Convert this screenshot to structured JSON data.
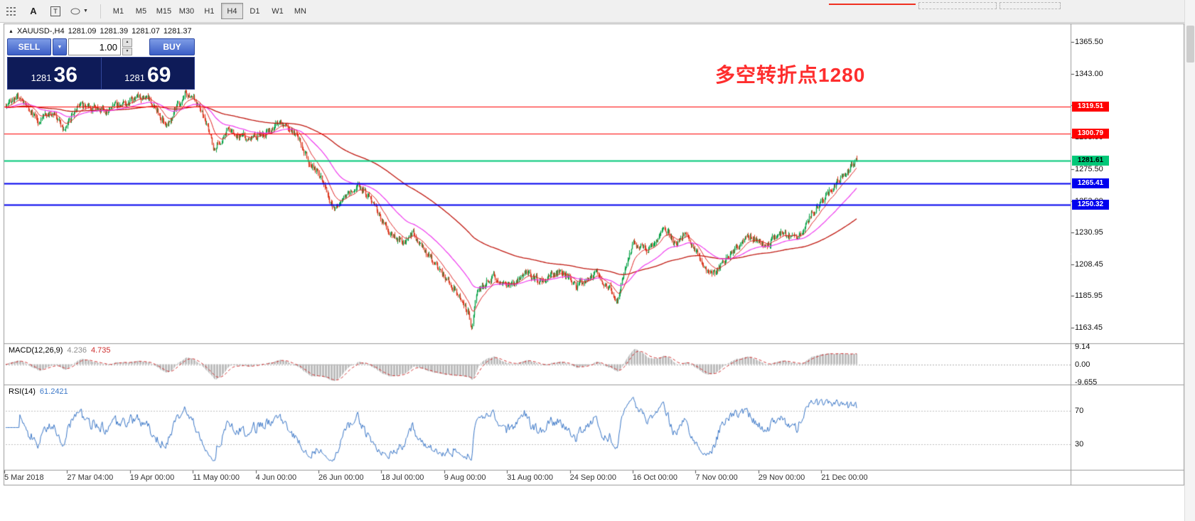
{
  "colors": {
    "up_candle": "#0ca34a",
    "down_candle": "#dd3b22",
    "macd_hist": "#bdbdbd",
    "macd_signal": "#d03030",
    "rsi_line": "#3c78c8",
    "annotation_red": "#fe2d2d",
    "panel_navy": "#0e1b58",
    "accent_blue": "#3b5ec6"
  },
  "icons": {
    "bar_marker": "▲",
    "caret_down": "▼",
    "spinner_up": "▲",
    "spinner_down": "▼",
    "text_tool": "A",
    "label_tool": "T"
  },
  "toolbar": {
    "timeframes": [
      {
        "label": "M1",
        "active": false
      },
      {
        "label": "M5",
        "active": false
      },
      {
        "label": "M15",
        "active": false
      },
      {
        "label": "M30",
        "active": false
      },
      {
        "label": "H1",
        "active": false
      },
      {
        "label": "H4",
        "active": true
      },
      {
        "label": "D1",
        "active": false
      },
      {
        "label": "W1",
        "active": false
      },
      {
        "label": "MN",
        "active": false
      }
    ]
  },
  "symbol_line": {
    "symbol": "XAUUSD-,H4",
    "open": "1281.09",
    "high": "1281.39",
    "low": "1281.07",
    "close": "1281.37"
  },
  "one_click": {
    "sell_label": "SELL",
    "buy_label": "BUY",
    "volume": "1.00",
    "sell_price_small": "1281",
    "sell_price_big": "36",
    "buy_price_small": "1281",
    "buy_price_big": "69"
  },
  "annotation": {
    "text": "多空转折点1280"
  },
  "indicators": {
    "macd": {
      "name": "MACD(12,26,9)",
      "value_main": "4.236",
      "value_signal": "4.735",
      "axis": [
        {
          "text": "9.14",
          "value": 9.14
        },
        {
          "text": "0.00",
          "value": 0
        },
        {
          "text": "-9.655",
          "value": -9.655
        }
      ]
    },
    "rsi": {
      "name": "RSI(14)",
      "value": "61.2421",
      "axis": [
        {
          "text": "70",
          "value": 70
        },
        {
          "text": "30",
          "value": 30
        }
      ]
    }
  },
  "chart_data": {
    "type": "candlestick",
    "symbol": "XAUUSD-",
    "timeframe": "H4",
    "title": "XAUUSD- H4 with MACD(12,26,9) and RSI(14)",
    "current_bar": {
      "open": 1281.09,
      "high": 1281.39,
      "low": 1281.07,
      "close": 1281.37
    },
    "y_axis_labels": [
      "1365.50",
      "1343.00",
      "1320.50",
      "1298.00",
      "1275.50",
      "1253.00",
      "1230.95",
      "1208.45",
      "1185.95",
      "1163.45"
    ],
    "y_axis_values": [
      1365.5,
      1343.0,
      1320.5,
      1298.0,
      1275.5,
      1253.0,
      1230.95,
      1208.45,
      1185.95,
      1163.45
    ],
    "x_labels": [
      "5 Mar 2018",
      "27 Mar 04:00",
      "19 Apr 00:00",
      "11 May 00:00",
      "4 Jun 00:00",
      "26 Jun 00:00",
      "18 Jul 00:00",
      "9 Aug 00:00",
      "31 Aug 00:00",
      "24 Sep 00:00",
      "16 Oct 00:00",
      "7 Nov 00:00",
      "29 Nov 00:00",
      "21 Dec 00:00"
    ],
    "view": {
      "top_price": 1378,
      "bottom_price": 1152.5
    },
    "horizontal_levels": [
      {
        "price": 1319.51,
        "label": "1319.51",
        "color": "#ff0000",
        "text_color": "#ffffff",
        "width": 1
      },
      {
        "price": 1300.79,
        "label": "1300.79",
        "color": "#ff0000",
        "text_color": "#ffffff",
        "width": 1
      },
      {
        "price": 1281.61,
        "label": "1281.61",
        "color": "#00c878",
        "text_color": "#000000",
        "width": 2
      },
      {
        "price": 1265.41,
        "label": "1265.41",
        "color": "#0000ee",
        "text_color": "#ffffff",
        "width": 2
      },
      {
        "price": 1250.32,
        "label": "1250.32",
        "color": "#0000ee",
        "text_color": "#ffffff",
        "width": 2
      }
    ],
    "num_candles": 900,
    "price_path": [
      [
        0.0,
        1320
      ],
      [
        0.018,
        1327
      ],
      [
        0.039,
        1308
      ],
      [
        0.056,
        1316
      ],
      [
        0.069,
        1304
      ],
      [
        0.085,
        1322
      ],
      [
        0.119,
        1317
      ],
      [
        0.165,
        1328
      ],
      [
        0.19,
        1307
      ],
      [
        0.212,
        1331
      ],
      [
        0.231,
        1316
      ],
      [
        0.244,
        1291
      ],
      [
        0.261,
        1303
      ],
      [
        0.287,
        1297
      ],
      [
        0.307,
        1302
      ],
      [
        0.327,
        1308
      ],
      [
        0.34,
        1301
      ],
      [
        0.357,
        1281
      ],
      [
        0.373,
        1267
      ],
      [
        0.384,
        1248
      ],
      [
        0.399,
        1257
      ],
      [
        0.415,
        1263
      ],
      [
        0.428,
        1254
      ],
      [
        0.449,
        1231
      ],
      [
        0.465,
        1224
      ],
      [
        0.478,
        1230
      ],
      [
        0.486,
        1222
      ],
      [
        0.505,
        1208
      ],
      [
        0.521,
        1196
      ],
      [
        0.532,
        1186
      ],
      [
        0.543,
        1176
      ],
      [
        0.548,
        1163
      ],
      [
        0.553,
        1186
      ],
      [
        0.557,
        1192
      ],
      [
        0.574,
        1200
      ],
      [
        0.591,
        1193
      ],
      [
        0.612,
        1203
      ],
      [
        0.628,
        1196
      ],
      [
        0.652,
        1205
      ],
      [
        0.67,
        1192
      ],
      [
        0.691,
        1202
      ],
      [
        0.71,
        1192
      ],
      [
        0.719,
        1182
      ],
      [
        0.727,
        1205
      ],
      [
        0.737,
        1224
      ],
      [
        0.755,
        1218
      ],
      [
        0.775,
        1233
      ],
      [
        0.787,
        1222
      ],
      [
        0.8,
        1230
      ],
      [
        0.816,
        1212
      ],
      [
        0.829,
        1200
      ],
      [
        0.85,
        1215
      ],
      [
        0.875,
        1228
      ],
      [
        0.896,
        1222
      ],
      [
        0.912,
        1232
      ],
      [
        0.929,
        1226
      ],
      [
        0.946,
        1243
      ],
      [
        0.962,
        1255
      ],
      [
        0.979,
        1268
      ],
      [
        0.993,
        1276
      ],
      [
        1.0,
        1281.4
      ]
    ],
    "moving_averages": [
      {
        "period": 175,
        "color": "#c01810",
        "width": 1.3
      },
      {
        "period": 55,
        "color": "#ef3aef",
        "width": 1.2
      },
      {
        "period": 16,
        "color": "#e02020",
        "width": 1
      }
    ],
    "macd": {
      "fast": 12,
      "slow": 26,
      "signal": 9
    },
    "rsi": {
      "period": 14,
      "levels": [
        70,
        30
      ]
    }
  }
}
